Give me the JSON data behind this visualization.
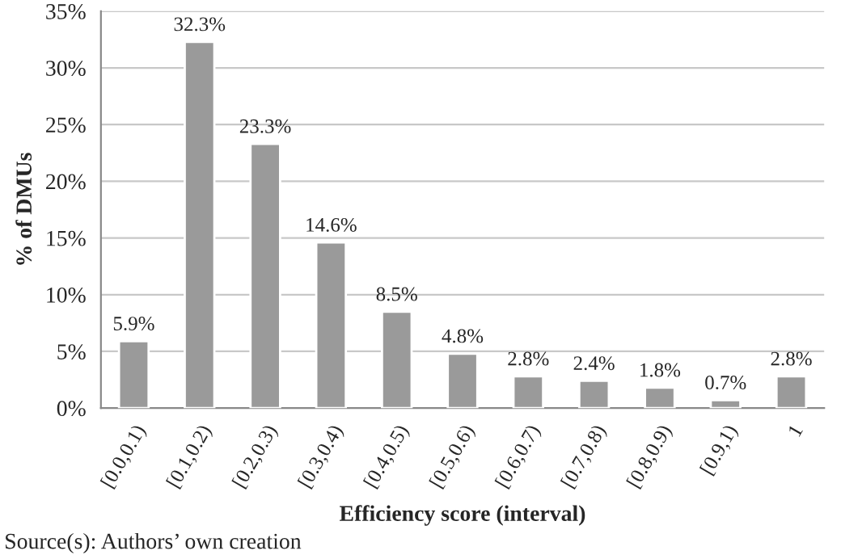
{
  "chart_data": {
    "type": "bar",
    "categories": [
      "[0.0,0.1)",
      "[0.1,0.2)",
      "[0.2,0.3)",
      "[0.3,0.4)",
      "[0.4,0.5)",
      "[0.5,0.6)",
      "[0.6,0.7)",
      "[0.7,0.8)",
      "[0.8,0.9)",
      "[0.9,1)",
      "1"
    ],
    "values": [
      5.9,
      32.3,
      23.3,
      14.6,
      8.5,
      4.8,
      2.8,
      2.4,
      1.8,
      0.7,
      2.8
    ],
    "value_labels": [
      "5.9%",
      "32.3%",
      "23.3%",
      "14.6%",
      "8.5%",
      "4.8%",
      "2.8%",
      "2.4%",
      "1.8%",
      "0.7%",
      "2.8%"
    ],
    "color": "#9a9a9a",
    "ylabel": "% of DMUs",
    "xlabel": "Efficiency score (interval)",
    "ylim": [
      0,
      35
    ],
    "yticks": [
      {
        "value": 0,
        "label": "0%"
      },
      {
        "value": 5,
        "label": "5%"
      },
      {
        "value": 10,
        "label": "10%"
      },
      {
        "value": 15,
        "label": "15%"
      },
      {
        "value": 20,
        "label": "20%"
      },
      {
        "value": 25,
        "label": "25%"
      },
      {
        "value": 30,
        "label": "30%"
      },
      {
        "value": 35,
        "label": "35%"
      }
    ],
    "grid": "y",
    "legend": false,
    "annotations": [
      "Source(s): Authors’ own creation"
    ]
  }
}
